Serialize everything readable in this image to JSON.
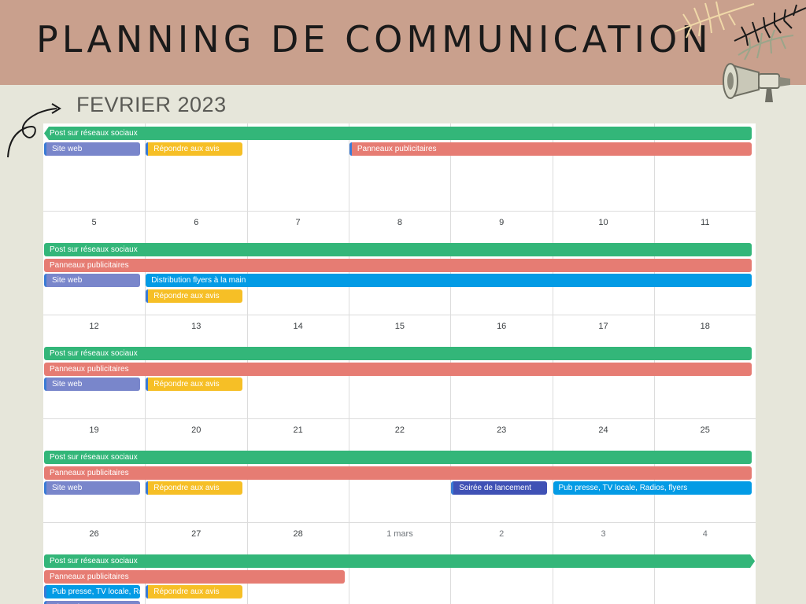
{
  "header": {
    "title": "PLANNING DE COMMUNICATION"
  },
  "month": {
    "label": "FEVRIER 2023"
  },
  "icons": {
    "megaphone": "megaphone-icon",
    "palm_leaves": "palm-leaves-icon",
    "curly_arrow": "curly-arrow-icon"
  },
  "colors": {
    "header_band": "#c9a08d",
    "background": "#e6e6da",
    "green": "#33b679",
    "red": "#e67c73",
    "lavender": "#7986cb",
    "yellow": "#f6bf26",
    "blue": "#039be5",
    "indigo": "#3f51b5"
  },
  "weeks": [
    {
      "days": [
        "",
        "",
        "",
        "",
        "",
        "",
        ""
      ],
      "events": [
        {
          "label": "Post sur réseaux sociaux",
          "color": "green",
          "start": 0,
          "end": 7,
          "lane": 0,
          "cont_left": true
        },
        {
          "label": "Site web",
          "color": "lavender",
          "start": 0,
          "end": 1,
          "lane": 1
        },
        {
          "label": "Répondre aux avis",
          "color": "yellow",
          "start": 1,
          "end": 2,
          "lane": 1
        },
        {
          "label": "Panneaux publicitaires",
          "color": "red",
          "start": 3,
          "end": 7,
          "lane": 1
        }
      ]
    },
    {
      "days": [
        "5",
        "6",
        "7",
        "8",
        "9",
        "10",
        "11"
      ],
      "events": [
        {
          "label": "Post sur réseaux sociaux",
          "color": "green",
          "start": 0,
          "end": 7,
          "lane": 0
        },
        {
          "label": "Panneaux publicitaires",
          "color": "red",
          "start": 0,
          "end": 7,
          "lane": 1
        },
        {
          "label": "Site web",
          "color": "lavender",
          "start": 0,
          "end": 1,
          "lane": 2
        },
        {
          "label": "Distribution flyers à la main",
          "color": "blue",
          "start": 1,
          "end": 7,
          "lane": 2
        },
        {
          "label": "Répondre aux avis",
          "color": "yellow",
          "start": 1,
          "end": 2,
          "lane": 3
        }
      ]
    },
    {
      "days": [
        "12",
        "13",
        "14",
        "15",
        "16",
        "17",
        "18"
      ],
      "events": [
        {
          "label": "Post sur réseaux sociaux",
          "color": "green",
          "start": 0,
          "end": 7,
          "lane": 0
        },
        {
          "label": "Panneaux publicitaires",
          "color": "red",
          "start": 0,
          "end": 7,
          "lane": 1
        },
        {
          "label": "Site web",
          "color": "lavender",
          "start": 0,
          "end": 1,
          "lane": 2
        },
        {
          "label": "Répondre aux avis",
          "color": "yellow",
          "start": 1,
          "end": 2,
          "lane": 2
        }
      ]
    },
    {
      "days": [
        "19",
        "20",
        "21",
        "22",
        "23",
        "24",
        "25"
      ],
      "events": [
        {
          "label": "Post sur réseaux sociaux",
          "color": "green",
          "start": 0,
          "end": 7,
          "lane": 0
        },
        {
          "label": "Panneaux publicitaires",
          "color": "red",
          "start": 0,
          "end": 7,
          "lane": 1
        },
        {
          "label": "Site web",
          "color": "lavender",
          "start": 0,
          "end": 1,
          "lane": 2
        },
        {
          "label": "Répondre aux avis",
          "color": "yellow",
          "start": 1,
          "end": 2,
          "lane": 2
        },
        {
          "label": "Soirée de lancement",
          "color": "indigo",
          "start": 4,
          "end": 5,
          "lane": 2
        },
        {
          "label": "Pub presse, TV locale, Radios, flyers",
          "color": "blue",
          "start": 5,
          "end": 7,
          "lane": 2
        }
      ]
    },
    {
      "days": [
        "26",
        "27",
        "28",
        "1 mars",
        "2",
        "3",
        "4"
      ],
      "events": [
        {
          "label": "Post sur réseaux sociaux",
          "color": "green",
          "start": 0,
          "end": 7,
          "lane": 0,
          "cont_right": true
        },
        {
          "label": "Panneaux publicitaires",
          "color": "red",
          "start": 0,
          "end": 3,
          "lane": 1
        },
        {
          "label": "Pub presse, TV locale, Radios, flyers",
          "color": "blue",
          "start": 0,
          "end": 1,
          "lane": 2
        },
        {
          "label": "Répondre aux avis",
          "color": "yellow",
          "start": 1,
          "end": 2,
          "lane": 2
        },
        {
          "label": "Site web",
          "color": "lavender",
          "start": 0,
          "end": 1,
          "lane": 3
        }
      ]
    }
  ]
}
